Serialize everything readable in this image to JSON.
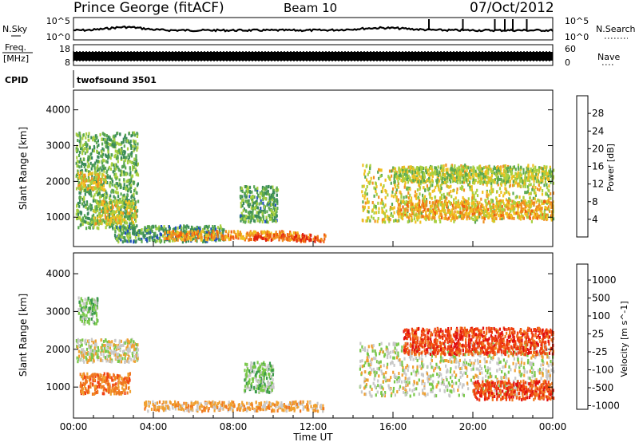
{
  "header": {
    "title": "Prince George (fitACF)",
    "beam": "Beam 10",
    "date": "07/Oct/2012"
  },
  "panels": {
    "noise": {
      "left_label": "N.Sky",
      "right_label": "N.Search",
      "left_ticks": [
        "10^5",
        "10^0"
      ],
      "right_ticks": [
        "10^5",
        "10^0"
      ]
    },
    "freq": {
      "left_label_1": "Freq.",
      "left_label_2": "[MHz]",
      "right_label": "Nave",
      "left_ticks": [
        "18",
        "8"
      ],
      "right_ticks": [
        "60",
        "0"
      ]
    },
    "cpid": {
      "label": "CPID",
      "value": "twofsound 3501"
    }
  },
  "colors": {
    "power_scale": [
      "#1020e0",
      "#2050c0",
      "#3a8a5a",
      "#5aa850",
      "#a8d040",
      "#f0c020",
      "#f09020",
      "#f06010",
      "#e02010"
    ],
    "velocity_scale": [
      "#2040b0",
      "#3a70a8",
      "#3a9a4a",
      "#78c848",
      "#c8c8c8",
      "#f0a030",
      "#f07820",
      "#f04010",
      "#e01010"
    ]
  },
  "chart_data": [
    {
      "type": "heatmap",
      "name": "power",
      "ylabel": "Slant Range [km]",
      "ylim": [
        180,
        4550
      ],
      "yticks": [
        "1000",
        "2000",
        "3000",
        "4000"
      ],
      "ytick_values": [
        1000,
        2000,
        3000,
        4000
      ],
      "xlim": [
        0,
        24
      ],
      "colorbar": {
        "label": "Power [dB]",
        "range": [
          0,
          32
        ],
        "ticks": [
          "4",
          "8",
          "12",
          "16",
          "20",
          "24",
          "28"
        ],
        "tick_values": [
          4,
          8,
          12,
          16,
          20,
          24,
          28
        ]
      },
      "regions": [
        {
          "t0": 0.1,
          "t1": 3.2,
          "r0": 700,
          "r1": 3400,
          "level": 12
        },
        {
          "t0": 0.2,
          "t1": 1.6,
          "r0": 1800,
          "r1": 2300,
          "level": 20
        },
        {
          "t0": 1.0,
          "t1": 3.1,
          "r0": 850,
          "r1": 1500,
          "level": 18
        },
        {
          "t0": 2.0,
          "t1": 7.5,
          "r0": 350,
          "r1": 800,
          "level": 10
        },
        {
          "t0": 4.5,
          "t1": 11.5,
          "r0": 400,
          "r1": 650,
          "level": 24
        },
        {
          "t0": 9.0,
          "t1": 12.6,
          "r0": 360,
          "r1": 560,
          "level": 29
        },
        {
          "t0": 8.3,
          "t1": 10.2,
          "r0": 900,
          "r1": 1900,
          "level": 11
        },
        {
          "t0": 14.4,
          "t1": 24.0,
          "r0": 900,
          "r1": 2500,
          "level": 18
        },
        {
          "t0": 16.2,
          "t1": 24.0,
          "r0": 1000,
          "r1": 1500,
          "level": 22
        },
        {
          "t0": 16.0,
          "t1": 24.0,
          "r0": 2000,
          "r1": 2450,
          "level": 16
        }
      ]
    },
    {
      "type": "heatmap",
      "name": "velocity",
      "ylabel": "Slant Range [km]",
      "xlabel": "Time UT",
      "ylim": [
        180,
        4550
      ],
      "yticks": [
        "1000",
        "2000",
        "3000",
        "4000"
      ],
      "ytick_values": [
        1000,
        2000,
        3000,
        4000
      ],
      "xlim": [
        0,
        24
      ],
      "xticks": [
        "00:00",
        "04:00",
        "08:00",
        "12:00",
        "16:00",
        "20:00",
        "00:00"
      ],
      "xtick_values": [
        0,
        4,
        8,
        12,
        16,
        20,
        24
      ],
      "colorbar": {
        "label": "Velocity [m s^-1]",
        "ticks": [
          "1000",
          "500",
          "100",
          "25",
          "-25",
          "-100",
          "-500",
          "-1000"
        ]
      },
      "regions": [
        {
          "t0": 0.1,
          "t1": 3.2,
          "r0": 1700,
          "r1": 2300,
          "level": 4
        },
        {
          "t0": 0.3,
          "t1": 2.8,
          "r0": 850,
          "r1": 1400,
          "level": 6
        },
        {
          "t0": 0.2,
          "t1": 1.2,
          "r0": 2700,
          "r1": 3400,
          "level": 3
        },
        {
          "t0": 3.5,
          "t1": 12.5,
          "r0": 400,
          "r1": 650,
          "level": 5
        },
        {
          "t0": 8.5,
          "t1": 10.0,
          "r0": 900,
          "r1": 1700,
          "level": 3
        },
        {
          "t0": 14.3,
          "t1": 24.0,
          "r0": 800,
          "r1": 2200,
          "level": 4
        },
        {
          "t0": 16.5,
          "t1": 24.0,
          "r0": 1900,
          "r1": 2600,
          "level": 7
        },
        {
          "t0": 20.0,
          "t1": 24.0,
          "r0": 700,
          "r1": 1200,
          "level": 7
        }
      ]
    }
  ]
}
